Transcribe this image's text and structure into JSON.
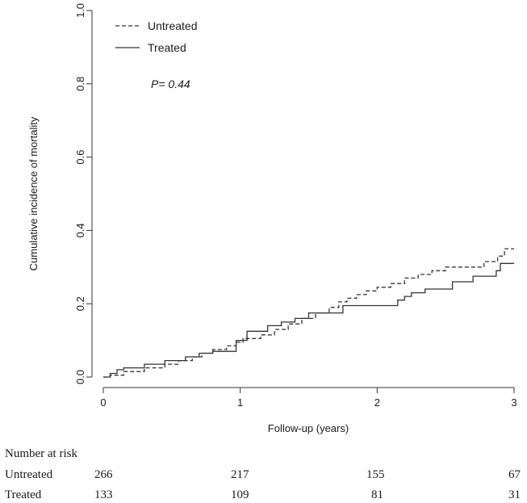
{
  "chart_data": {
    "type": "line",
    "xlabel": "Follow-up (years)",
    "ylabel": "Cumulative incidence of mortality",
    "xlim": [
      0,
      3
    ],
    "ylim": [
      0,
      1.0
    ],
    "x_ticks": [
      0,
      1,
      2,
      3
    ],
    "x_tick_labels": [
      "0",
      "1",
      "2",
      "3"
    ],
    "y_ticks": [
      0,
      0.2,
      0.4,
      0.6,
      0.8,
      1.0
    ],
    "y_tick_labels": [
      "0.0",
      "0.2",
      "0.4",
      "0.6",
      "0.8",
      "1.0"
    ],
    "grid": false,
    "legend": {
      "position": "top-left"
    },
    "annotation": "P= 0.44",
    "series": [
      {
        "name": "Untreated",
        "style": "dashed",
        "color": "#333333",
        "points": [
          [
            0,
            0
          ],
          [
            0.05,
            0.005
          ],
          [
            0.15,
            0.015
          ],
          [
            0.3,
            0.025
          ],
          [
            0.45,
            0.035
          ],
          [
            0.55,
            0.045
          ],
          [
            0.65,
            0.055
          ],
          [
            0.72,
            0.065
          ],
          [
            0.8,
            0.075
          ],
          [
            0.9,
            0.085
          ],
          [
            0.97,
            0.095
          ],
          [
            1.02,
            0.105
          ],
          [
            1.15,
            0.115
          ],
          [
            1.25,
            0.13
          ],
          [
            1.35,
            0.145
          ],
          [
            1.45,
            0.16
          ],
          [
            1.55,
            0.175
          ],
          [
            1.65,
            0.19
          ],
          [
            1.72,
            0.205
          ],
          [
            1.78,
            0.215
          ],
          [
            1.85,
            0.225
          ],
          [
            1.92,
            0.235
          ],
          [
            2.0,
            0.245
          ],
          [
            2.1,
            0.255
          ],
          [
            2.2,
            0.27
          ],
          [
            2.3,
            0.28
          ],
          [
            2.4,
            0.29
          ],
          [
            2.5,
            0.3
          ],
          [
            2.6,
            0.3
          ],
          [
            2.7,
            0.3
          ],
          [
            2.78,
            0.315
          ],
          [
            2.88,
            0.33
          ],
          [
            2.93,
            0.35
          ],
          [
            3.0,
            0.35
          ]
        ]
      },
      {
        "name": "Treated",
        "style": "solid",
        "color": "#333333",
        "points": [
          [
            0,
            0
          ],
          [
            0.05,
            0.01
          ],
          [
            0.1,
            0.02
          ],
          [
            0.15,
            0.025
          ],
          [
            0.3,
            0.035
          ],
          [
            0.45,
            0.045
          ],
          [
            0.6,
            0.055
          ],
          [
            0.7,
            0.065
          ],
          [
            0.8,
            0.07
          ],
          [
            0.97,
            0.1
          ],
          [
            1.05,
            0.125
          ],
          [
            1.2,
            0.14
          ],
          [
            1.3,
            0.15
          ],
          [
            1.4,
            0.16
          ],
          [
            1.5,
            0.175
          ],
          [
            1.75,
            0.195
          ],
          [
            2.15,
            0.21
          ],
          [
            2.2,
            0.22
          ],
          [
            2.25,
            0.23
          ],
          [
            2.35,
            0.24
          ],
          [
            2.55,
            0.26
          ],
          [
            2.7,
            0.275
          ],
          [
            2.87,
            0.29
          ],
          [
            2.9,
            0.31
          ],
          [
            3.0,
            0.31
          ]
        ]
      }
    ]
  },
  "risk_table": {
    "title": "Number at risk",
    "rows": [
      {
        "label": "Untreated",
        "values": [
          "266",
          "217",
          "155",
          "67"
        ]
      },
      {
        "label": "Treated",
        "values": [
          "133",
          "109",
          "81",
          "31"
        ]
      }
    ]
  }
}
